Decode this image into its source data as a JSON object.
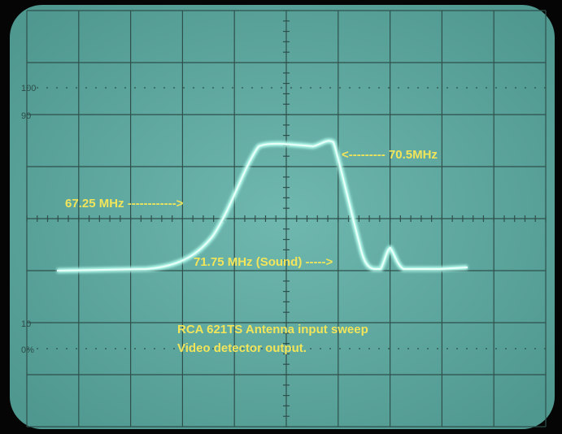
{
  "graticule": {
    "labels": [
      "100",
      "90",
      "10",
      "0%"
    ]
  },
  "annotations": {
    "marker_1": "67.25 MHz ------------>",
    "marker_2": "<--------- 70.5MHz",
    "marker_3": "71.75 MHz (Sound) ----->"
  },
  "caption": {
    "line_1": "RCA 621TS Antenna input sweep",
    "line_2": "Video detector output."
  }
}
